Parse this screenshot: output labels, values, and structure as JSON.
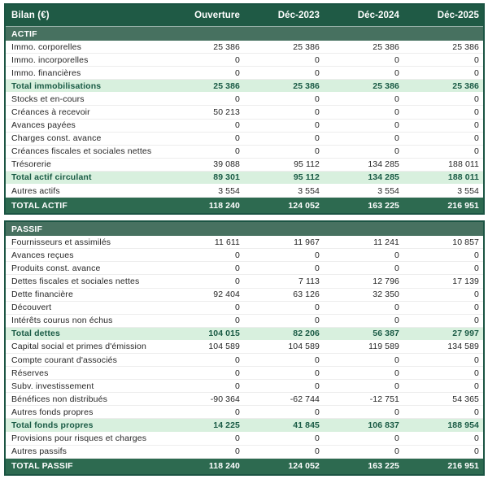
{
  "table": {
    "title": "Bilan (€)",
    "columns": [
      "Ouverture",
      "Déc-2023",
      "Déc-2024",
      "Déc-2025"
    ],
    "colors": {
      "header_bg": "#1f5a45",
      "section_bg": "#477160",
      "total_bg": "#2d6a50",
      "subtotal_bg": "#d8f0de",
      "subtotal_text": "#1a5b45",
      "border": "#1b5443",
      "body_text": "#262626",
      "row_divider": "#ededed"
    },
    "sections": [
      {
        "name": "ACTIF",
        "rows": [
          {
            "label": "Immo. corporelles",
            "type": "data",
            "values": [
              "25 386",
              "25 386",
              "25 386",
              "25 386"
            ]
          },
          {
            "label": "Immo. incorporelles",
            "type": "data",
            "values": [
              "0",
              "0",
              "0",
              "0"
            ]
          },
          {
            "label": "Immo. financières",
            "type": "data",
            "values": [
              "0",
              "0",
              "0",
              "0"
            ]
          },
          {
            "label": "Total immobilisations",
            "type": "subtotal",
            "values": [
              "25 386",
              "25 386",
              "25 386",
              "25 386"
            ]
          },
          {
            "label": "Stocks et en-cours",
            "type": "data",
            "values": [
              "0",
              "0",
              "0",
              "0"
            ]
          },
          {
            "label": "Créances à recevoir",
            "type": "data",
            "values": [
              "50 213",
              "0",
              "0",
              "0"
            ]
          },
          {
            "label": "Avances payées",
            "type": "data",
            "values": [
              "0",
              "0",
              "0",
              "0"
            ]
          },
          {
            "label": "Charges const. avance",
            "type": "data",
            "values": [
              "0",
              "0",
              "0",
              "0"
            ]
          },
          {
            "label": "Créances fiscales et sociales nettes",
            "type": "data",
            "values": [
              "0",
              "0",
              "0",
              "0"
            ]
          },
          {
            "label": "Trésorerie",
            "type": "data",
            "values": [
              "39 088",
              "95 112",
              "134 285",
              "188 011"
            ]
          },
          {
            "label": "Total actif circulant",
            "type": "subtotal",
            "values": [
              "89 301",
              "95 112",
              "134 285",
              "188 011"
            ]
          },
          {
            "label": "Autres actifs",
            "type": "data",
            "values": [
              "3 554",
              "3 554",
              "3 554",
              "3 554"
            ]
          },
          {
            "label": "TOTAL ACTIF",
            "type": "total",
            "values": [
              "118 240",
              "124 052",
              "163 225",
              "216 951"
            ]
          }
        ]
      },
      {
        "name": "PASSIF",
        "rows": [
          {
            "label": "Fournisseurs et assimilés",
            "type": "data",
            "values": [
              "11 611",
              "11 967",
              "11 241",
              "10 857"
            ]
          },
          {
            "label": "Avances reçues",
            "type": "data",
            "values": [
              "0",
              "0",
              "0",
              "0"
            ]
          },
          {
            "label": "Produits const. avance",
            "type": "data",
            "values": [
              "0",
              "0",
              "0",
              "0"
            ]
          },
          {
            "label": "Dettes fiscales et sociales nettes",
            "type": "data",
            "values": [
              "0",
              "7 113",
              "12 796",
              "17 139"
            ]
          },
          {
            "label": "Dette financière",
            "type": "data",
            "values": [
              "92 404",
              "63 126",
              "32 350",
              "0"
            ]
          },
          {
            "label": "Découvert",
            "type": "data",
            "values": [
              "0",
              "0",
              "0",
              "0"
            ]
          },
          {
            "label": "Intérêts courus non échus",
            "type": "data",
            "values": [
              "0",
              "0",
              "0",
              "0"
            ]
          },
          {
            "label": "Total dettes",
            "type": "subtotal",
            "values": [
              "104 015",
              "82 206",
              "56 387",
              "27 997"
            ]
          },
          {
            "label": "Capital social et primes d'émission",
            "type": "data",
            "values": [
              "104 589",
              "104 589",
              "119 589",
              "134 589"
            ]
          },
          {
            "label": "Compte courant d'associés",
            "type": "data",
            "values": [
              "0",
              "0",
              "0",
              "0"
            ]
          },
          {
            "label": "Réserves",
            "type": "data",
            "values": [
              "0",
              "0",
              "0",
              "0"
            ]
          },
          {
            "label": "Subv. investissement",
            "type": "data",
            "values": [
              "0",
              "0",
              "0",
              "0"
            ]
          },
          {
            "label": "Bénéfices non distribués",
            "type": "data",
            "values": [
              "-90 364",
              "-62 744",
              "-12 751",
              "54 365"
            ]
          },
          {
            "label": "Autres fonds propres",
            "type": "data",
            "values": [
              "0",
              "0",
              "0",
              "0"
            ]
          },
          {
            "label": "Total fonds propres",
            "type": "subtotal",
            "values": [
              "14 225",
              "41 845",
              "106 837",
              "188 954"
            ]
          },
          {
            "label": "Provisions pour risques et charges",
            "type": "data",
            "values": [
              "0",
              "0",
              "0",
              "0"
            ]
          },
          {
            "label": "Autres passifs",
            "type": "data",
            "values": [
              "0",
              "0",
              "0",
              "0"
            ]
          },
          {
            "label": "TOTAL PASSIF",
            "type": "total",
            "values": [
              "118 240",
              "124 052",
              "163 225",
              "216 951"
            ]
          }
        ]
      }
    ]
  }
}
